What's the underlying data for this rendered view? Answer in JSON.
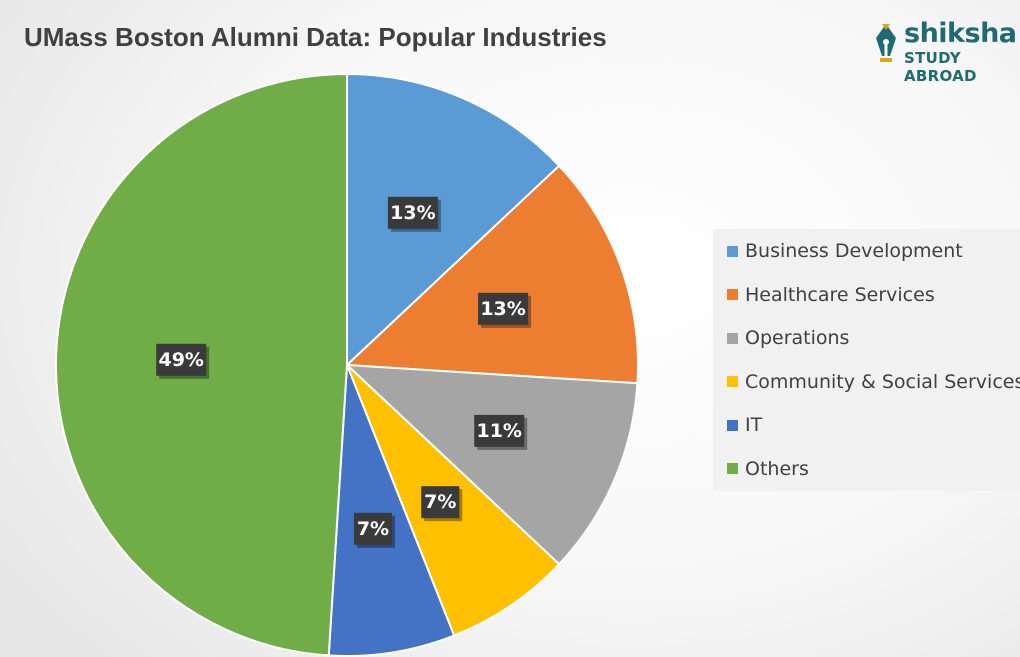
{
  "chart_data": {
    "type": "pie",
    "title": "UMass Boston Alumni Data: Popular Industries",
    "categories": [
      "Business Development",
      "Healthcare Services",
      "Operations",
      "Community & Social Services",
      "IT",
      "Others"
    ],
    "values": [
      13,
      13,
      11,
      7,
      7,
      49
    ],
    "data_labels": [
      "13%",
      "13%",
      "11%",
      "7%",
      "7%",
      "49%"
    ],
    "colors": [
      "#5b9bd5",
      "#ed7d31",
      "#a5a5a5",
      "#ffc000",
      "#4472c4",
      "#70ad47"
    ],
    "start_angle_deg": 0,
    "direction": "clockwise",
    "legend_position": "right"
  },
  "logo": {
    "brand": "shiksha",
    "tagline": "STUDY ABROAD"
  }
}
